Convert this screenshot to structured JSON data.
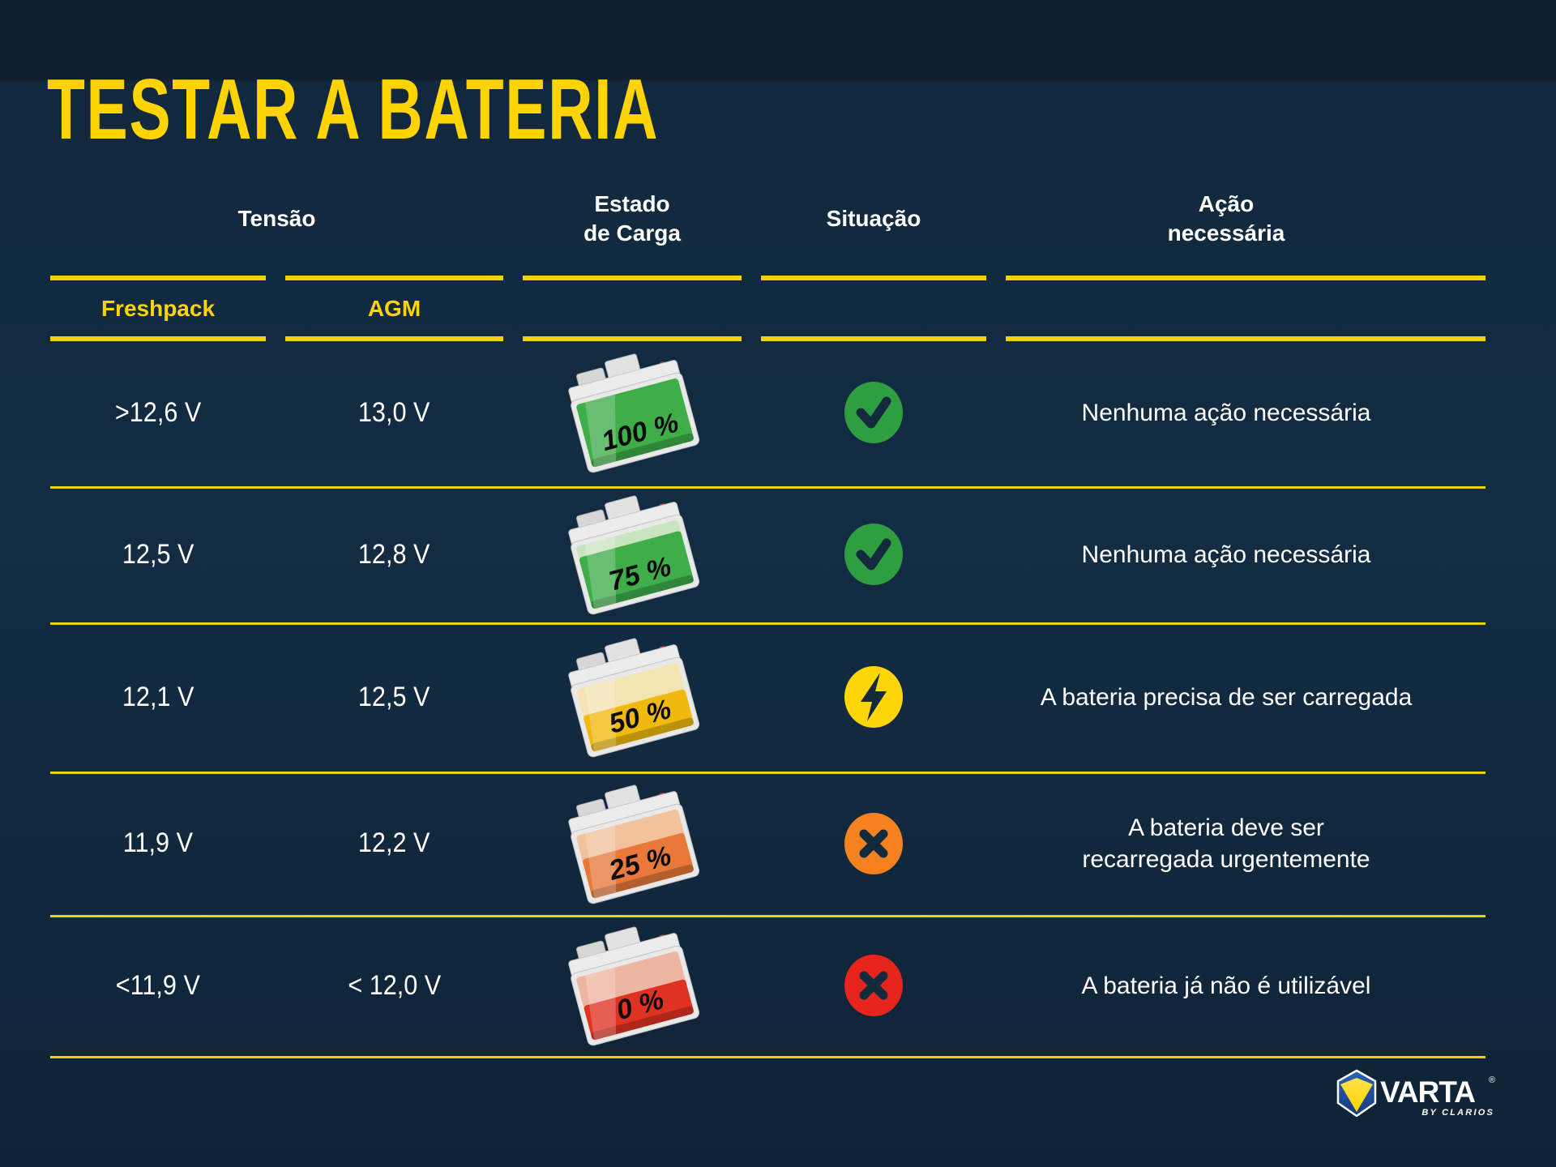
{
  "title": "TESTAR A BATERIA",
  "theme": {
    "background_navy": "#12283C",
    "accent_yellow": "#FFD400",
    "line_yellow": "#F2D202",
    "text_white": "#FFFFFF",
    "icon_glyph_navy": "#13293C"
  },
  "table": {
    "group_header_tensao": "Tensão",
    "headers": {
      "estado_line1": "Estado",
      "estado_line2": "de Carga",
      "situacao": "Situação",
      "acao_line1": "Ação",
      "acao_line2": "necessária"
    },
    "subheaders": {
      "freshpack": "Freshpack",
      "agm": "AGM"
    },
    "rows": [
      {
        "freshpack": ">12,6 V",
        "agm": "13,0 V",
        "charge_label": "100 %",
        "charge_percent": 100,
        "fluid_level": 1.0,
        "battery_color": "#3FAE49",
        "battery_pale": "#BCDDB5",
        "battery_deep": "#1F8F33",
        "status": "check",
        "status_color": "#2F9E41",
        "action_line1": "Nenhuma ação necessária",
        "action_line2": ""
      },
      {
        "freshpack": "12,5 V",
        "agm": "12,8 V",
        "charge_label": "75 %",
        "charge_percent": 75,
        "fluid_level": 0.82,
        "battery_color": "#3FAE49",
        "battery_pale": "#C9E4C1",
        "battery_deep": "#1F8F33",
        "status": "check",
        "status_color": "#2F9E41",
        "action_line1": "Nenhuma ação necessária",
        "action_line2": ""
      },
      {
        "freshpack": "12,1 V",
        "agm": "12,5 V",
        "charge_label": "50 %",
        "charge_percent": 50,
        "fluid_level": 0.58,
        "battery_color": "#F0B90F",
        "battery_pale": "#F4E4B4",
        "battery_deep": "#C98F00",
        "status": "bolt",
        "status_color": "#FFD60A",
        "action_line1": "A bateria precisa de ser carregada",
        "action_line2": ""
      },
      {
        "freshpack": "11,9 V",
        "agm": "12,2 V",
        "charge_label": "25 %",
        "charge_percent": 25,
        "fluid_level": 0.62,
        "battery_color": "#E8793A",
        "battery_pale": "#F2C29D",
        "battery_deep": "#C25A1F",
        "status": "cross",
        "status_color": "#F5821F",
        "action_line1": "A bateria deve ser",
        "action_line2": "recarregada urgentemente"
      },
      {
        "freshpack": "<11,9 V",
        "agm": "< 12,0 V",
        "charge_label": "0 %",
        "charge_percent": 0,
        "fluid_level": 0.55,
        "battery_color": "#E03222",
        "battery_pale": "#EFB5A3",
        "battery_deep": "#AF1F12",
        "status": "cross",
        "status_color": "#E8251D",
        "action_line1": "A bateria já não é utilizável",
        "action_line2": ""
      }
    ]
  },
  "logo": {
    "brand": "VARTA",
    "registered": "®",
    "tagline": "BY CLARIOS",
    "cube_blue": "#2456A4",
    "cube_blue_dark": "#16397A",
    "cube_yellow": "#FFD500"
  }
}
